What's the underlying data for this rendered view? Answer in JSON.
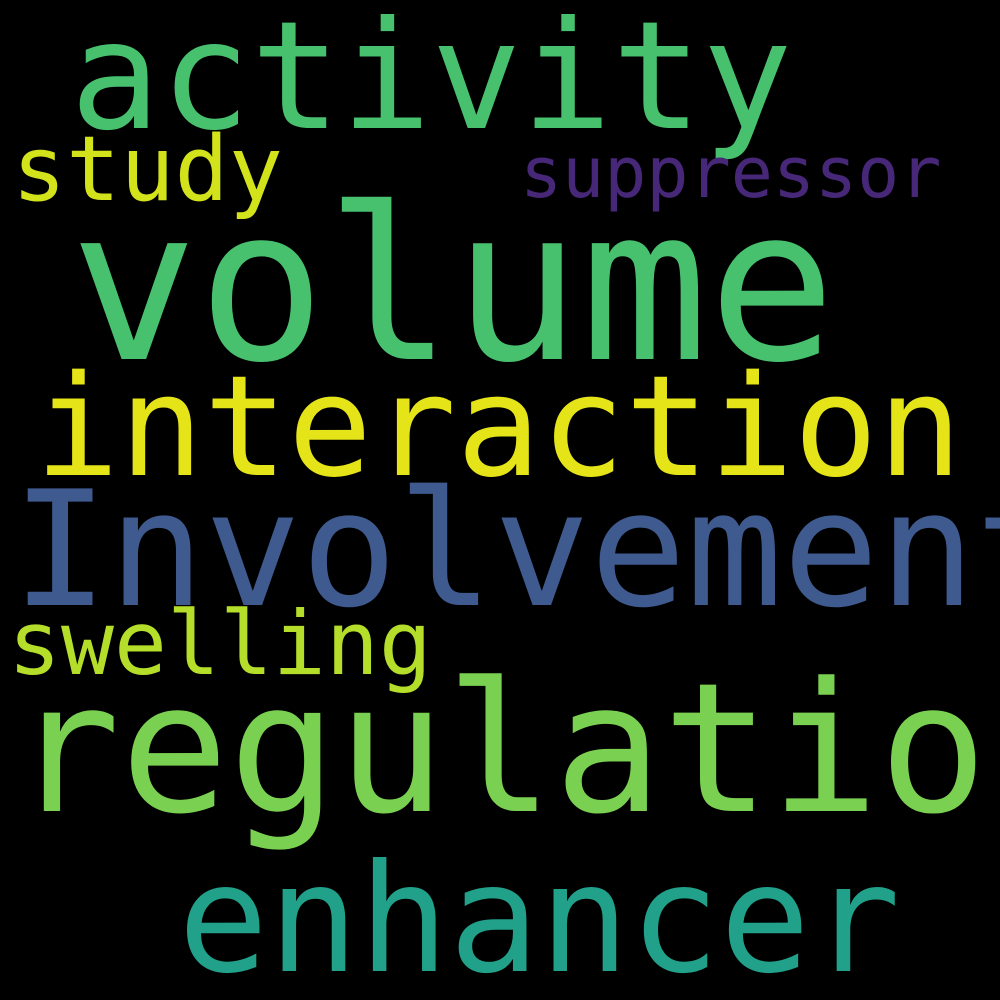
{
  "words": {
    "activity": {
      "text": "activity",
      "color": "#48c16e"
    },
    "study": {
      "text": "study",
      "color": "#d2e21b"
    },
    "suppressor": {
      "text": "suppressor",
      "color": "#472777"
    },
    "volume": {
      "text": "volume",
      "color": "#48c16e"
    },
    "interaction": {
      "text": "interaction",
      "color": "#e5e419"
    },
    "involvements": {
      "text": "Involvements",
      "color": "#3f5a8f"
    },
    "swelling": {
      "text": "swelling",
      "color": "#b5de2b"
    },
    "regulation": {
      "text": "regulation",
      "color": "#7ad151"
    },
    "enhancer": {
      "text": "enhancer",
      "color": "#21a08a"
    }
  }
}
